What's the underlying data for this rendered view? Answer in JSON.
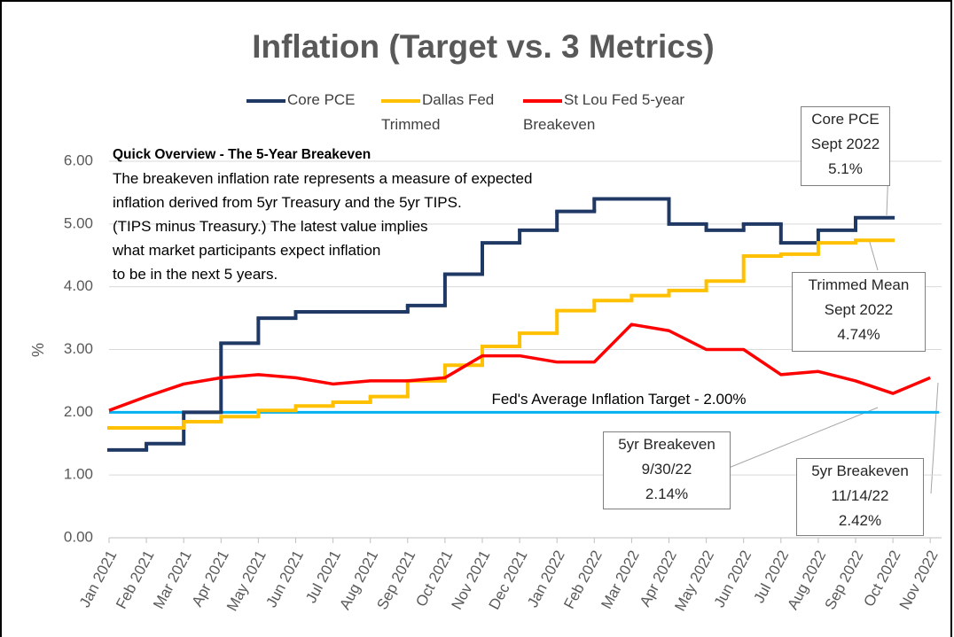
{
  "chart_data": {
    "type": "line",
    "title": "Inflation (Target vs. 3 Metrics)",
    "y_label": "%",
    "categories": [
      "Jan 2021",
      "Feb 2021",
      "Mar 2021",
      "Apr 2021",
      "May 2021",
      "Jun 2021",
      "Jul 2021",
      "Aug 2021",
      "Sep 2021",
      "Oct 2021",
      "Nov 2021",
      "Dec 2021",
      "Jan 2022",
      "Feb 2022",
      "Mar 2022",
      "Apr 2022",
      "May 2022",
      "Jun 2022",
      "Jul 2022",
      "Aug 2022",
      "Sep 2022",
      "Oct 2022",
      "Nov 2022"
    ],
    "series": [
      {
        "name": "Core PCE",
        "color": "#1f3864",
        "step": true,
        "values": [
          1.4,
          1.5,
          2.0,
          3.1,
          3.5,
          3.6,
          3.6,
          3.6,
          3.7,
          4.2,
          4.7,
          4.9,
          5.2,
          5.4,
          5.4,
          5.0,
          4.9,
          5.0,
          4.7,
          4.9,
          5.1,
          null,
          null
        ]
      },
      {
        "name": "Dallas Fed Trimmed",
        "color": "#ffc000",
        "step": true,
        "values": [
          1.75,
          1.75,
          1.85,
          1.93,
          2.03,
          2.1,
          2.16,
          2.25,
          2.5,
          2.75,
          3.05,
          3.26,
          3.62,
          3.78,
          3.86,
          3.94,
          4.09,
          4.49,
          4.52,
          4.7,
          4.74,
          null,
          null
        ]
      },
      {
        "name": "St Lou Fed 5-year Breakeven",
        "color": "#ff0000",
        "step": false,
        "values": [
          2.03,
          2.25,
          2.45,
          2.55,
          2.6,
          2.55,
          2.45,
          2.5,
          2.5,
          2.55,
          2.9,
          2.9,
          2.8,
          2.8,
          3.4,
          3.3,
          3.0,
          3.0,
          2.6,
          2.65,
          2.5,
          2.3,
          2.55
        ]
      }
    ],
    "target_line": {
      "value": 2,
      "color": "#00b0f0",
      "label": "Fed's Average Inflation Target - 2.00%"
    },
    "ylim": [
      0,
      6
    ],
    "yticks": [
      {
        "value": 0,
        "label": "0.00"
      },
      {
        "value": 1,
        "label": "1.00"
      },
      {
        "value": 2,
        "label": "2.00"
      },
      {
        "value": 3,
        "label": "3.00"
      },
      {
        "value": 4,
        "label": "4.00"
      },
      {
        "value": 5,
        "label": "5.00"
      },
      {
        "value": 6,
        "label": "6.00"
      }
    ],
    "grid": true,
    "overview": {
      "heading": "Quick Overview - The 5-Year Breakeven",
      "lines": [
        "The breakeven inflation rate represents a measure of expected",
        "inflation derived from 5yr Treasury and the 5yr TIPS.",
        "(TIPS minus Treasury.) The latest value implies",
        "what market participants expect inflation",
        "to be in the next 5 years."
      ]
    },
    "callouts": [
      {
        "lines": [
          "Core PCE",
          "Sept 2022",
          "5.1%"
        ]
      },
      {
        "lines": [
          "Trimmed Mean",
          "Sept 2022",
          "4.74%"
        ]
      },
      {
        "lines": [
          "5yr Breakeven",
          "9/30/22",
          "2.14%"
        ]
      },
      {
        "lines": [
          "5yr Breakeven",
          "11/14/22",
          "2.42%"
        ]
      }
    ]
  }
}
